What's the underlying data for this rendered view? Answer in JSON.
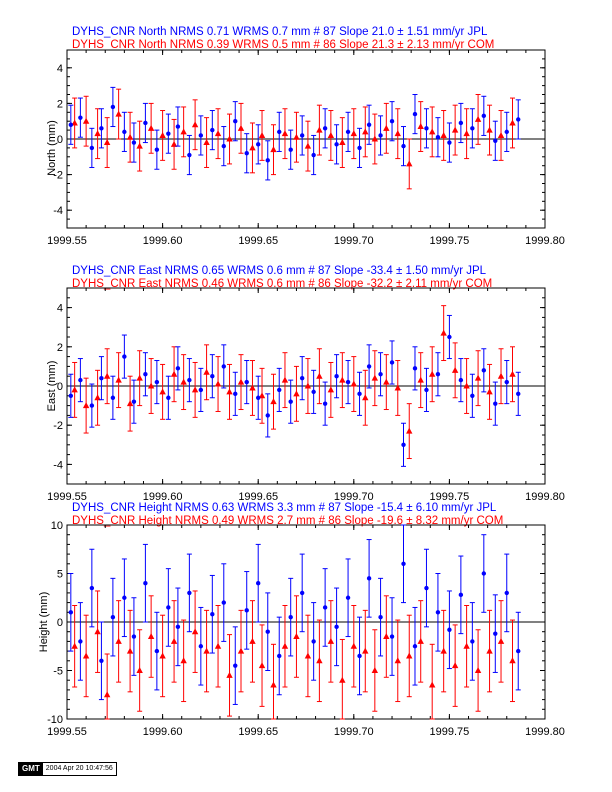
{
  "colors": {
    "jpl": "#0000ff",
    "com": "#ff0000",
    "axis": "#000000"
  },
  "footer": {
    "logo": "GMT",
    "timestamp": "2004 Apr 20 10:47:56"
  },
  "chart_data": [
    {
      "type": "scatter",
      "component": "North",
      "ylabel": "North (mm)",
      "xlim": [
        1999.55,
        1999.8
      ],
      "ylim": [
        -5,
        5
      ],
      "xticks": [
        "1999.55",
        "1999.60",
        "1999.65",
        "1999.70",
        "1999.75",
        "1999.80"
      ],
      "yticks": [
        "-4",
        "-2",
        "0",
        "2",
        "4"
      ],
      "grid": false,
      "title_lines": [
        {
          "text": "DYHS_CNR North NRMS 0.71 WRMS  0.7 mm # 87 Slope   21.0 ±  1.51 mm/yr JPL",
          "series": "JPL"
        },
        {
          "text": "DYHS_CNR North NRMS 0.39 WRMS  0.5 mm # 86 Slope   21.3 ±  2.13 mm/yr COM",
          "series": "COM"
        }
      ],
      "series": [
        {
          "name": "JPL",
          "marker": "circle",
          "error": 1.1,
          "x": [
            1999.552,
            1999.557,
            1999.563,
            1999.568,
            1999.574,
            1999.58,
            1999.585,
            1999.591,
            1999.597,
            1999.603,
            1999.608,
            1999.614,
            1999.62,
            1999.626,
            1999.632,
            1999.638,
            1999.644,
            1999.65,
            1999.655,
            1999.661,
            1999.667,
            1999.673,
            1999.679,
            1999.685,
            1999.691,
            1999.697,
            1999.703,
            1999.708,
            1999.714,
            1999.72,
            1999.726,
            1999.732,
            1999.738,
            1999.744,
            1999.75,
            1999.756,
            1999.762,
            1999.768,
            1999.774,
            1999.78,
            1999.786
          ],
          "y": [
            0.8,
            1.2,
            -0.5,
            0.6,
            1.8,
            0.4,
            -0.2,
            0.9,
            -0.6,
            0.3,
            0.7,
            -0.9,
            0.2,
            0.5,
            -0.4,
            1.0,
            -0.8,
            -0.3,
            -1.2,
            0.4,
            -0.6,
            0.2,
            -0.9,
            0.6,
            -0.3,
            0.4,
            -0.5,
            0.8,
            0.2,
            1.0,
            -0.4,
            1.4,
            0.6,
            0.1,
            -0.2,
            0.9,
            0.6,
            1.3,
            -0.1,
            0.4,
            1.1
          ]
        },
        {
          "name": "COM",
          "marker": "triangle",
          "error": 1.4,
          "x": [
            1999.554,
            1999.56,
            1999.566,
            1999.571,
            1999.577,
            1999.583,
            1999.588,
            1999.594,
            1999.6,
            1999.606,
            1999.611,
            1999.617,
            1999.623,
            1999.629,
            1999.635,
            1999.641,
            1999.647,
            1999.652,
            1999.658,
            1999.664,
            1999.67,
            1999.676,
            1999.682,
            1999.688,
            1999.694,
            1999.7,
            1999.706,
            1999.711,
            1999.717,
            1999.723,
            1999.729,
            1999.735,
            1999.741,
            1999.747,
            1999.753,
            1999.759,
            1999.765,
            1999.771,
            1999.777,
            1999.783
          ],
          "y": [
            0.9,
            1.0,
            0.3,
            -0.2,
            1.4,
            0.1,
            -0.4,
            0.6,
            0.2,
            -0.3,
            0.4,
            0.8,
            -0.2,
            0.3,
            0.0,
            0.6,
            -0.5,
            0.2,
            -0.6,
            0.3,
            0.1,
            -0.4,
            0.5,
            0.2,
            -0.2,
            0.3,
            0.4,
            0.0,
            0.6,
            0.3,
            -1.4,
            0.7,
            0.4,
            0.2,
            0.5,
            0.3,
            1.1,
            0.5,
            0.2,
            0.9
          ]
        }
      ]
    },
    {
      "type": "scatter",
      "component": "East",
      "ylabel": "East (mm)",
      "xlim": [
        1999.55,
        1999.8
      ],
      "ylim": [
        -5,
        5
      ],
      "xticks": [
        "1999.55",
        "1999.60",
        "1999.65",
        "1999.70",
        "1999.75",
        "1999.80"
      ],
      "yticks": [
        "-4",
        "-2",
        "0",
        "2",
        "4"
      ],
      "grid": false,
      "title_lines": [
        {
          "text": "DYHS_CNR East NRMS 0.65 WRMS  0.6 mm # 87 Slope  -33.4 ±  1.50 mm/yr JPL",
          "series": "JPL"
        },
        {
          "text": "DYHS_CNR East NRMS 0.46 WRMS  0.6 mm # 86 Slope  -32.2 ±  2.11 mm/yr COM",
          "series": "COM"
        }
      ],
      "series": [
        {
          "name": "JPL",
          "marker": "circle",
          "error": 1.1,
          "x": [
            1999.552,
            1999.557,
            1999.563,
            1999.568,
            1999.574,
            1999.58,
            1999.585,
            1999.591,
            1999.597,
            1999.603,
            1999.608,
            1999.614,
            1999.62,
            1999.626,
            1999.632,
            1999.638,
            1999.644,
            1999.65,
            1999.655,
            1999.661,
            1999.667,
            1999.673,
            1999.679,
            1999.685,
            1999.691,
            1999.697,
            1999.703,
            1999.708,
            1999.714,
            1999.72,
            1999.726,
            1999.732,
            1999.738,
            1999.744,
            1999.75,
            1999.756,
            1999.762,
            1999.768,
            1999.774,
            1999.78,
            1999.786
          ],
          "y": [
            -0.5,
            0.3,
            -1.0,
            0.4,
            -0.6,
            1.5,
            -0.8,
            0.6,
            0.2,
            -0.6,
            0.9,
            0.3,
            -0.2,
            0.5,
            1.0,
            -0.4,
            0.2,
            -0.6,
            -1.5,
            -0.2,
            -0.8,
            0.4,
            -0.3,
            -0.9,
            0.5,
            0.2,
            -0.4,
            1.0,
            0.6,
            1.2,
            -3.0,
            0.9,
            -0.2,
            0.6,
            2.5,
            0.3,
            -0.5,
            0.8,
            -0.9,
            0.2,
            -0.4
          ]
        },
        {
          "name": "COM",
          "marker": "triangle",
          "error": 1.4,
          "x": [
            1999.554,
            1999.56,
            1999.566,
            1999.571,
            1999.577,
            1999.583,
            1999.588,
            1999.594,
            1999.6,
            1999.606,
            1999.611,
            1999.617,
            1999.623,
            1999.629,
            1999.635,
            1999.641,
            1999.647,
            1999.652,
            1999.658,
            1999.664,
            1999.67,
            1999.676,
            1999.682,
            1999.688,
            1999.694,
            1999.7,
            1999.706,
            1999.711,
            1999.717,
            1999.723,
            1999.729,
            1999.735,
            1999.741,
            1999.747,
            1999.753,
            1999.759,
            1999.765,
            1999.771,
            1999.777,
            1999.783
          ],
          "y": [
            -0.2,
            -1.0,
            -0.6,
            0.5,
            0.3,
            -0.9,
            0.4,
            0.0,
            -0.3,
            0.6,
            0.2,
            -0.2,
            0.7,
            0.1,
            -0.3,
            0.2,
            -0.1,
            -0.5,
            -0.8,
            0.3,
            -0.4,
            0.0,
            0.5,
            -0.2,
            0.3,
            0.1,
            -0.6,
            0.4,
            0.2,
            -0.1,
            -2.3,
            0.3,
            0.6,
            2.7,
            0.8,
            0.0,
            0.4,
            -0.3,
            0.5,
            0.6
          ]
        }
      ]
    },
    {
      "type": "scatter",
      "component": "Height",
      "ylabel": "Height (mm)",
      "xlim": [
        1999.55,
        1999.8
      ],
      "ylim": [
        -10,
        10
      ],
      "xticks": [
        "1999.55",
        "1999.60",
        "1999.65",
        "1999.70",
        "1999.75",
        "1999.80"
      ],
      "yticks": [
        "-10",
        "-5",
        "0",
        "5",
        "10"
      ],
      "grid": false,
      "title_lines": [
        {
          "text": "DYHS_CNR Height NRMS 0.63 WRMS  3.3 mm # 87 Slope  -15.4 ±  6.10 mm/yr JPL",
          "series": "JPL"
        },
        {
          "text": "DYHS_CNR Height NRMS 0.49 WRMS  2.7 mm # 86 Slope  -19.6 ±  8.32 mm/yr COM",
          "series": "COM"
        }
      ],
      "series": [
        {
          "name": "JPL",
          "marker": "circle",
          "error": 4.0,
          "x": [
            1999.552,
            1999.557,
            1999.563,
            1999.568,
            1999.574,
            1999.58,
            1999.585,
            1999.591,
            1999.597,
            1999.603,
            1999.608,
            1999.614,
            1999.62,
            1999.626,
            1999.632,
            1999.638,
            1999.644,
            1999.65,
            1999.655,
            1999.661,
            1999.667,
            1999.673,
            1999.679,
            1999.685,
            1999.691,
            1999.697,
            1999.703,
            1999.708,
            1999.714,
            1999.72,
            1999.726,
            1999.732,
            1999.738,
            1999.744,
            1999.75,
            1999.756,
            1999.762,
            1999.768,
            1999.774,
            1999.78,
            1999.786
          ],
          "y": [
            1.0,
            -2.0,
            3.5,
            -4.0,
            0.5,
            2.5,
            -1.5,
            4.0,
            -3.0,
            1.5,
            -0.5,
            3.0,
            -2.5,
            0.8,
            2.0,
            -4.5,
            1.2,
            4.0,
            -1.0,
            -3.5,
            0.5,
            3.0,
            -2.0,
            1.5,
            -0.5,
            2.5,
            -3.5,
            4.5,
            0.5,
            -1.5,
            6.0,
            -2.5,
            3.5,
            1.0,
            -0.8,
            2.8,
            -2.0,
            5.0,
            -1.2,
            3.0,
            -3.0
          ]
        },
        {
          "name": "COM",
          "marker": "triangle",
          "error": 4.2,
          "x": [
            1999.554,
            1999.56,
            1999.566,
            1999.571,
            1999.577,
            1999.583,
            1999.588,
            1999.594,
            1999.6,
            1999.606,
            1999.611,
            1999.617,
            1999.623,
            1999.629,
            1999.635,
            1999.641,
            1999.647,
            1999.652,
            1999.658,
            1999.664,
            1999.67,
            1999.676,
            1999.682,
            1999.688,
            1999.694,
            1999.7,
            1999.706,
            1999.711,
            1999.717,
            1999.723,
            1999.729,
            1999.735,
            1999.741,
            1999.747,
            1999.753,
            1999.759,
            1999.765,
            1999.771,
            1999.777,
            1999.783
          ],
          "y": [
            -2.5,
            -3.5,
            -1.0,
            -7.5,
            -2.0,
            -3.0,
            -5.0,
            -1.5,
            -3.5,
            -2.0,
            -4.0,
            -1.0,
            -3.0,
            -2.5,
            -5.5,
            -3.0,
            -2.0,
            -4.5,
            -6.5,
            -2.5,
            -1.5,
            -3.5,
            -4.0,
            -2.0,
            -6.0,
            -2.5,
            -3.0,
            -5.0,
            -1.5,
            -4.0,
            -3.5,
            -2.0,
            -6.5,
            -3.0,
            -4.5,
            -2.5,
            -5.0,
            -3.0,
            -2.0,
            -4.0
          ]
        }
      ]
    }
  ]
}
